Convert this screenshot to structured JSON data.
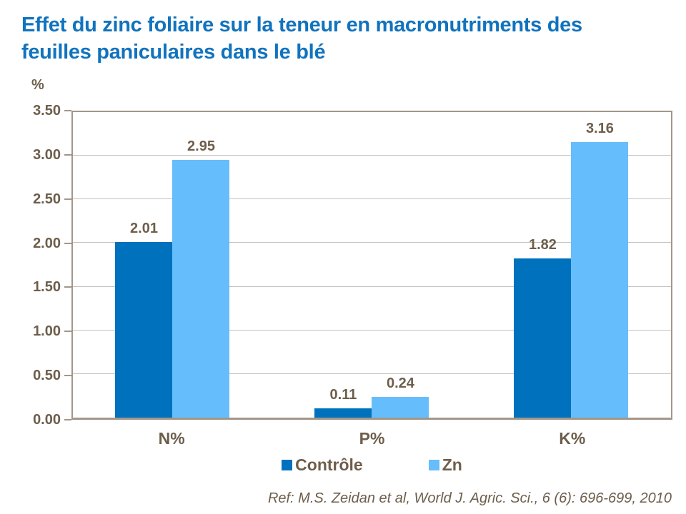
{
  "colors": {
    "title": "#1173BE",
    "text": "#6D5E4B",
    "grid": "#C6C2BD",
    "axis": "#A3968A",
    "bar_dark": "#0071BD",
    "bar_light": "#66BDFB"
  },
  "chart_data": {
    "type": "bar",
    "title": "Effet du zinc foliaire sur la teneur en macronutriments des feuilles paniculaires dans le blé",
    "title_lines": [
      "Effet du zinc foliaire sur la teneur en macronutriments des",
      "feuilles paniculaires dans le blé"
    ],
    "unit_label": "%",
    "categories": [
      "N%",
      "P%",
      "K%"
    ],
    "series": [
      {
        "name": "Contrôle",
        "color": "#0071BD",
        "values": [
          2.01,
          0.11,
          1.82
        ],
        "labels": [
          "2.01",
          "0.11",
          "1.82"
        ]
      },
      {
        "name": "Zn",
        "color": "#66BDFB",
        "values": [
          2.95,
          0.24,
          3.16
        ],
        "labels": [
          "2.95",
          "0.24",
          "3.16"
        ]
      }
    ],
    "ylim": [
      0,
      3.5
    ],
    "ytick_step": 0.5,
    "yticks": [
      "0.00",
      "0.50",
      "1.00",
      "1.50",
      "2.00",
      "2.50",
      "3.00",
      "3.50"
    ],
    "grid": true,
    "legend_position": "bottom",
    "reference": "Ref: M.S. Zeidan et al, World J. Agric. Sci., 6 (6): 696-699, 2010"
  }
}
